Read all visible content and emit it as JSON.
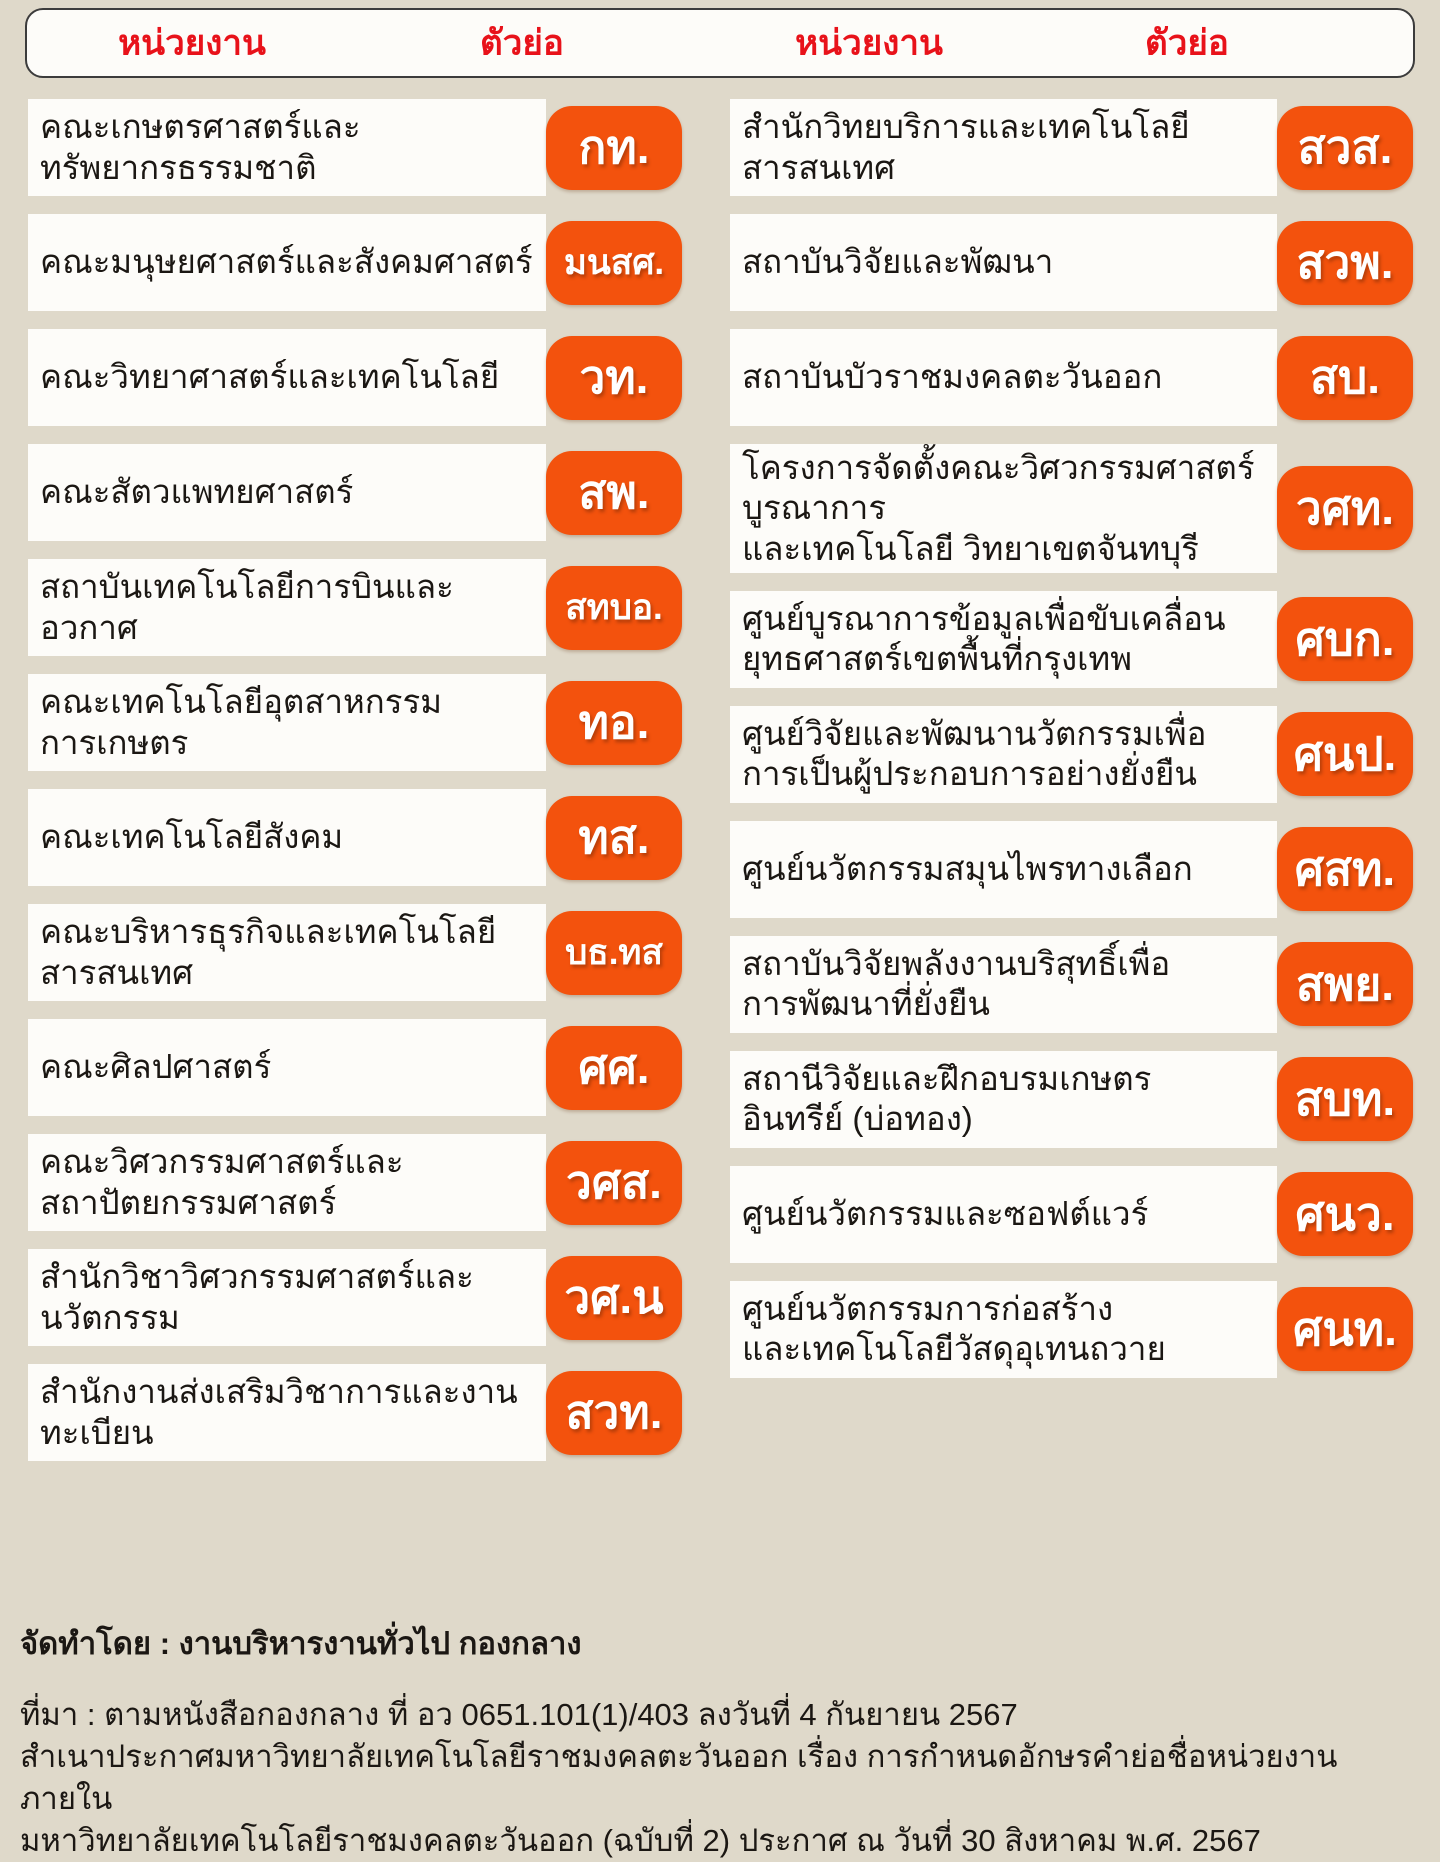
{
  "header": {
    "columns": [
      "หน่วยงาน",
      "ตัวย่อ",
      "หน่วยงาน",
      "ตัวย่อ"
    ]
  },
  "left_column": [
    {
      "name": "คณะเกษตรศาสตร์และทรัพยากรธรรมชาติ",
      "abbr": "กท."
    },
    {
      "name": "คณะมนุษยศาสตร์และสังคมศาสตร์",
      "abbr": "มนสศ."
    },
    {
      "name": "คณะวิทยาศาสตร์และเทคโนโลยี",
      "abbr": "วท."
    },
    {
      "name": "คณะสัตวแพทยศาสตร์",
      "abbr": "สพ."
    },
    {
      "name": "สถาบันเทคโนโลยีการบินและอวกาศ",
      "abbr": "สทบอ."
    },
    {
      "name": "คณะเทคโนโลยีอุตสาหกรรมการเกษตร",
      "abbr": "ทอ."
    },
    {
      "name": "คณะเทคโนโลยีสังคม",
      "abbr": "ทส."
    },
    {
      "name": "คณะบริหารธุรกิจและเทคโนโลยีสารสนเทศ",
      "abbr": "บธ.ทส"
    },
    {
      "name": "คณะศิลปศาสตร์",
      "abbr": "ศศ."
    },
    {
      "name": "คณะวิศวกรรมศาสตร์และ\nสถาปัตยกรรมศาสตร์",
      "abbr": "วศส."
    },
    {
      "name": "สำนักวิชาวิศวกรรมศาสตร์และนวัตกรรม",
      "abbr": "วศ.น"
    },
    {
      "name": "สำนักงานส่งเสริมวิชาการและงานทะเบียน",
      "abbr": "สวท."
    }
  ],
  "right_column": [
    {
      "name": "สำนักวิทยบริการและเทคโนโลยีสารสนเทศ",
      "abbr": "สวส."
    },
    {
      "name": "สถาบันวิจัยและพัฒนา",
      "abbr": "สวพ."
    },
    {
      "name": "สถาบันบัวราชมงคลตะวันออก",
      "abbr": "สบ."
    },
    {
      "name": "โครงการจัดตั้งคณะวิศวกรรมศาสตร์บูรณาการ\nและเทคโนโลยี วิทยาเขตจันทบุรี",
      "abbr": "วศท."
    },
    {
      "name": "ศูนย์บูรณาการข้อมูลเพื่อขับเคลื่อน\nยุทธศาสตร์เขตพื้นที่กรุงเทพ",
      "abbr": "ศบก."
    },
    {
      "name": "ศูนย์วิจัยและพัฒนานวัตกรรมเพื่อ\nการเป็นผู้ประกอบการอย่างยั่งยืน",
      "abbr": "ศนป."
    },
    {
      "name": "ศูนย์นวัตกรรมสมุนไพรทางเลือก",
      "abbr": "ศสท."
    },
    {
      "name": "สถาบันวิจัยพลังงานบริสุทธิ์เพื่อ\nการพัฒนาที่ยั่งยืน",
      "abbr": "สพย."
    },
    {
      "name": "สถานีวิจัยและฝึกอบรมเกษตร\nอินทรีย์ (บ่อทอง)",
      "abbr": "สบท."
    },
    {
      "name": "ศูนย์นวัตกรรมและซอฟต์แวร์",
      "abbr": "ศนว."
    },
    {
      "name": "ศูนย์นวัตกรรมการก่อสร้าง\nและเทคโนโลยีวัสดุอุเทนถวาย",
      "abbr": "ศนท."
    }
  ],
  "footer": {
    "prepared_by": "จัดทำโดย : งานบริหารงานทั่วไป กองกลาง",
    "source_lines": [
      "ที่มา : ตามหนังสือกองกลาง ที่ อว 0651.101(1)/403 ลงวันที่ 4 กันยายน 2567",
      "สำเนาประกาศมหาวิทยาลัยเทคโนโลยีราชมงคลตะวันออก เรื่อง การกำหนดอักษรคำย่อชื่อหน่วยงานภายใน",
      "มหาวิทยาลัยเทคโนโลยีราชมงคลตะวันออก (ฉบับที่ 2) ประกาศ ณ วันที่ 30 สิงหาคม พ.ศ. 2567"
    ]
  },
  "colors": {
    "background": "#dfd9ca",
    "row_background": "#fdfcf9",
    "badge_orange": "#f3520d",
    "header_red": "#e8121a",
    "text": "#1b1713"
  }
}
